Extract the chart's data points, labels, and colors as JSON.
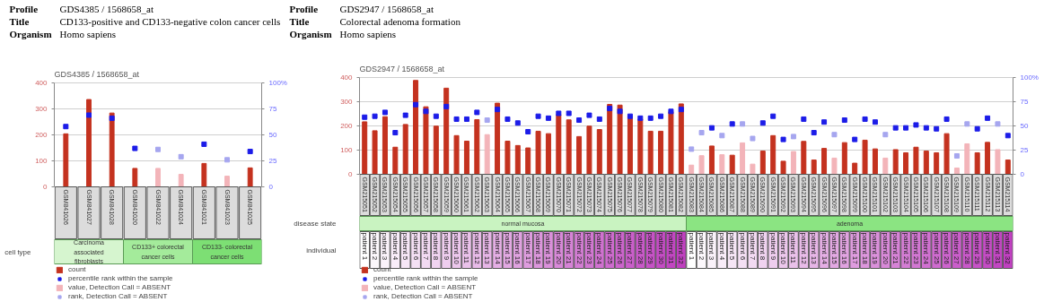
{
  "chart_data": [
    {
      "type": "bar",
      "title": "GDS4385 / 1568658_at",
      "categories": [
        "GSM841026",
        "GSM841027",
        "GSM841028",
        "GSM841020",
        "GSM841022",
        "GSM841024",
        "GSM841021",
        "GSM841023",
        "GSM841025"
      ],
      "series": [
        {
          "name": "count",
          "color": "#c4321f",
          "values": [
            204,
            336,
            284,
            71,
            null,
            null,
            90,
            null,
            73
          ]
        },
        {
          "name": "percentile rank within the sample",
          "type": "scatter",
          "axis": "y2",
          "color": "#1c1ce8",
          "values": [
            58,
            69,
            66,
            37,
            null,
            null,
            41,
            null,
            34
          ]
        },
        {
          "name": "value, Detection Call = ABSENT",
          "color": "#f3b4b9",
          "values": [
            null,
            null,
            null,
            null,
            71,
            48,
            null,
            41,
            null
          ]
        },
        {
          "name": "rank, Detection Call = ABSENT",
          "type": "scatter",
          "axis": "y2",
          "color": "#a6a6ef",
          "values": [
            null,
            null,
            null,
            null,
            36,
            29,
            null,
            26,
            null
          ]
        }
      ],
      "ylim": [
        0,
        400
      ],
      "yticks": [
        0,
        100,
        200,
        300,
        400
      ],
      "y2lim": [
        0,
        100
      ],
      "y2ticks": [
        0,
        25,
        50,
        75,
        {
          "value": 100,
          "label": "100%"
        }
      ],
      "grid": "y",
      "legend": "bottom",
      "marker": "square",
      "annotations": [
        "Profile",
        "GDS4385 / 1568658_at",
        "Title",
        "CD133-positive and CD133-negative colon cancer cells",
        "Organism",
        "Homo sapiens",
        "cell type",
        "Carcinoma associated fibroblasts",
        "CD133+ colorectal cancer cells",
        "CD133- colorectal cancer cells"
      ]
    },
    {
      "type": "bar",
      "title": "GDS2947 / 1568658_at",
      "categories": [
        "GSM215051",
        "GSM215052",
        "GSM215053",
        "GSM215054",
        "GSM215055",
        "GSM215056",
        "GSM215057",
        "GSM215058",
        "GSM215059",
        "GSM215060",
        "GSM215061",
        "GSM215062",
        "GSM215063",
        "GSM215064",
        "GSM215065",
        "GSM215066",
        "GSM215067",
        "GSM215068",
        "GSM215069",
        "GSM215070",
        "GSM215071",
        "GSM215072",
        "GSM215073",
        "GSM215074",
        "GSM215075",
        "GSM215076",
        "GSM215077",
        "GSM215078",
        "GSM215079",
        "GSM215080",
        "GSM215081",
        "GSM215082",
        "GSM215083",
        "GSM215084",
        "GSM215085",
        "GSM215086",
        "GSM215087",
        "GSM215088",
        "GSM215089",
        "GSM215090",
        "GSM215091",
        "GSM215092",
        "GSM215093",
        "GSM215094",
        "GSM215095",
        "GSM215096",
        "GSM215097",
        "GSM215098",
        "GSM215099",
        "GSM215100",
        "GSM215101",
        "GSM215102",
        "GSM215103",
        "GSM215104",
        "GSM215105",
        "GSM215106",
        "GSM215107",
        "GSM215108",
        "GSM215109",
        "GSM215110",
        "GSM215111",
        "GSM215112",
        "GSM215113",
        "GSM215114"
      ],
      "series": [
        {
          "name": "count",
          "color": "#c4321f",
          "values": [
            217,
            180,
            238,
            112,
            206,
            388,
            279,
            199,
            356,
            160,
            137,
            226,
            null,
            294,
            137,
            119,
            109,
            178,
            168,
            247,
            225,
            156,
            199,
            185,
            289,
            286,
            243,
            228,
            178,
            178,
            259,
            291,
            null,
            null,
            117,
            null,
            79,
            null,
            null,
            96,
            160,
            54,
            null,
            136,
            59,
            107,
            null,
            131,
            46,
            141,
            105,
            null,
            102,
            89,
            112,
            96,
            89,
            168,
            null,
            null,
            89,
            132,
            null,
            59
          ]
        },
        {
          "name": "percentile rank within the sample",
          "type": "scatter",
          "axis": "y2",
          "color": "#1c1ce8",
          "values": [
            59,
            60,
            64,
            43,
            61,
            72,
            65,
            60,
            70,
            57,
            57,
            64,
            null,
            67,
            57,
            53,
            44,
            60,
            58,
            63,
            63,
            56,
            61,
            57,
            68,
            65,
            60,
            58,
            58,
            60,
            65,
            67,
            null,
            null,
            48,
            null,
            52,
            null,
            null,
            53,
            60,
            36,
            null,
            57,
            43,
            54,
            null,
            56,
            36,
            57,
            54,
            null,
            48,
            48,
            51,
            48,
            47,
            57,
            null,
            null,
            47,
            58,
            null,
            40
          ]
        },
        {
          "name": "value, Detection Call = ABSENT",
          "color": "#f3b4b9",
          "values": [
            null,
            null,
            null,
            null,
            null,
            null,
            null,
            null,
            null,
            null,
            null,
            null,
            164,
            null,
            null,
            null,
            null,
            null,
            null,
            null,
            null,
            null,
            null,
            null,
            null,
            null,
            null,
            null,
            null,
            null,
            null,
            null,
            38,
            77,
            null,
            81,
            null,
            130,
            42,
            null,
            null,
            null,
            94,
            null,
            null,
            null,
            67,
            null,
            null,
            null,
            null,
            67,
            null,
            null,
            null,
            null,
            null,
            null,
            26,
            126,
            null,
            null,
            102,
            null
          ]
        },
        {
          "name": "rank, Detection Call = ABSENT",
          "type": "scatter",
          "axis": "y2",
          "color": "#a6a6ef",
          "values": [
            null,
            null,
            null,
            null,
            null,
            null,
            null,
            null,
            null,
            null,
            null,
            null,
            56,
            null,
            null,
            null,
            null,
            null,
            null,
            null,
            null,
            null,
            null,
            null,
            null,
            null,
            null,
            null,
            null,
            null,
            null,
            null,
            26,
            43,
            null,
            40,
            null,
            52,
            37,
            null,
            null,
            null,
            39,
            null,
            null,
            null,
            41,
            null,
            null,
            null,
            null,
            41,
            null,
            null,
            null,
            null,
            null,
            null,
            19,
            52,
            null,
            null,
            52,
            null
          ]
        }
      ],
      "ylim": [
        0,
        400
      ],
      "yticks": [
        0,
        100,
        200,
        300,
        400
      ],
      "y2lim": [
        0,
        100
      ],
      "y2ticks": [
        0,
        25,
        50,
        75,
        {
          "value": 100,
          "label": "100%"
        }
      ],
      "grid": "y",
      "legend": "bottom",
      "marker": "square",
      "annotations": [
        "Profile",
        "GDS2947 / 1568658_at",
        "Title",
        "Colorectal adenoma formation",
        "Organism",
        "Homo sapiens",
        "disease state",
        "normal mucosa",
        "adenoma",
        "individual",
        "patient 1",
        "patient 2",
        "patient 3",
        "patient 4",
        "patient 5",
        "patient 6",
        "patient 7",
        "patient 8",
        "patient 9",
        "patient 10",
        "patient 11",
        "patient 12",
        "patient 13",
        "patient 14",
        "patient 15",
        "patient 16",
        "patient 17",
        "patient 18",
        "patient 19",
        "patient 20",
        "patient 21",
        "patient 22",
        "patient 23",
        "patient 24",
        "patient 25",
        "patient 26",
        "patient 27",
        "patient 28",
        "patient 29",
        "patient 30",
        "patient 31",
        "patient 32",
        "patient 1",
        "patient 2",
        "patient 3",
        "patient 4",
        "patient 5",
        "patient 6",
        "patient 7",
        "patient 8",
        "patient 9",
        "patient 10",
        "patient 11",
        "patient 12",
        "patient 13",
        "patient 14",
        "patient 15",
        "patient 16",
        "patient 17",
        "patient 18",
        "patient 19",
        "patient 20",
        "patient 21",
        "patient 22",
        "patient 23",
        "patient 24",
        "patient 25",
        "patient 26",
        "patient 27",
        "patient 28",
        "patient 29",
        "patient 30",
        "patient 31",
        "patient 32"
      ]
    }
  ]
}
